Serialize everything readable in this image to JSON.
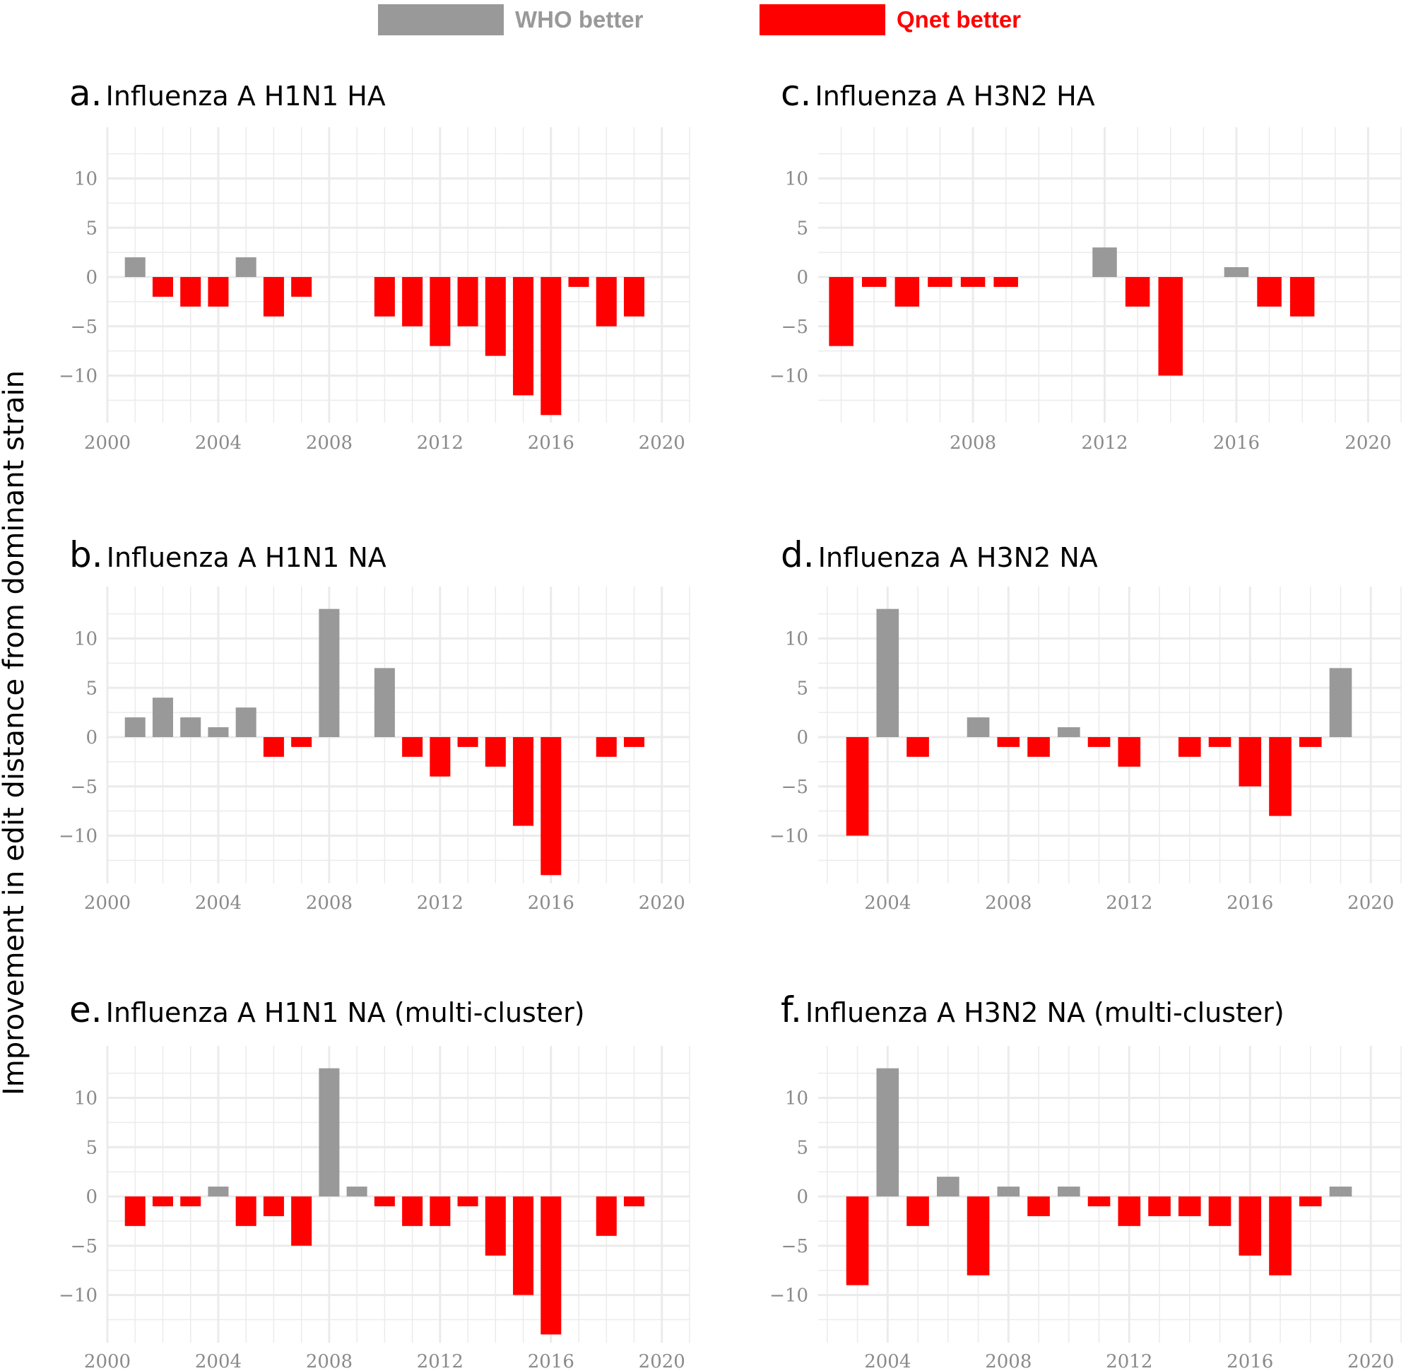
{
  "legend": {
    "items": [
      {
        "label": "WHO better",
        "color": "#999999"
      },
      {
        "label": "Qnet better",
        "color": "#ff0000"
      }
    ]
  },
  "ylabel": "Improvement in edit distance from dominant strain",
  "colors": {
    "who_better": "#999999",
    "qnet_better": "#ff0000",
    "grid": "#ebebeb"
  },
  "chart_data": [
    {
      "type": "bar",
      "letter": "a.",
      "title": "Influenza A H1N1 HA",
      "xlabel": "",
      "ylabel": "",
      "xlim": [
        2000,
        2021
      ],
      "ylim": [
        -15,
        15
      ],
      "xticks": [
        2000,
        2004,
        2008,
        2012,
        2016,
        2020
      ],
      "xtick_labels": [
        "2000",
        "2004",
        "2008",
        "2012",
        "2016",
        "2020"
      ],
      "yticks": [
        10,
        5,
        0,
        -5,
        -10
      ],
      "ytick_labels": [
        "10",
        "5",
        "0",
        "−5",
        "−10"
      ],
      "x": [
        2001,
        2002,
        2003,
        2004,
        2005,
        2006,
        2007,
        2010,
        2011,
        2012,
        2013,
        2014,
        2015,
        2016,
        2017,
        2018,
        2019
      ],
      "values": [
        2,
        -2,
        -3,
        -3,
        2,
        -4,
        -2,
        -4,
        -5,
        -7,
        -5,
        -8,
        -12,
        -14,
        -1,
        -5,
        -4
      ]
    },
    {
      "type": "bar",
      "letter": "b.",
      "title": "Influenza A H1N1 NA",
      "xlabel": "",
      "ylabel": "",
      "xlim": [
        2000,
        2021
      ],
      "ylim": [
        -15,
        15
      ],
      "xticks": [
        2000,
        2004,
        2008,
        2012,
        2016,
        2020
      ],
      "xtick_labels": [
        "2000",
        "2004",
        "2008",
        "2012",
        "2016",
        "2020"
      ],
      "yticks": [
        10,
        5,
        0,
        -5,
        -10
      ],
      "ytick_labels": [
        "10",
        "5",
        "0",
        "−5",
        "−10"
      ],
      "x": [
        2001,
        2002,
        2003,
        2004,
        2005,
        2006,
        2007,
        2008,
        2010,
        2011,
        2012,
        2013,
        2014,
        2015,
        2016,
        2018,
        2019
      ],
      "values": [
        2,
        4,
        2,
        1,
        3,
        -2,
        -1,
        13,
        7,
        -2,
        -4,
        -1,
        -3,
        -9,
        -14,
        -2,
        -1
      ]
    },
    {
      "type": "bar",
      "letter": "c.",
      "title": "Influenza A H3N2 HA",
      "xlabel": "",
      "ylabel": "",
      "xlim": [
        2003.3,
        2021
      ],
      "ylim": [
        -15,
        15
      ],
      "xticks": [
        2008,
        2012,
        2016,
        2020
      ],
      "xtick_labels": [
        "2008",
        "2012",
        "2016",
        "2020"
      ],
      "yticks": [
        10,
        5,
        0,
        -5,
        -10
      ],
      "ytick_labels": [
        "10",
        "5",
        "0",
        "−5",
        "−10"
      ],
      "x": [
        2004,
        2005,
        2006,
        2007,
        2008,
        2009,
        2012,
        2013,
        2014,
        2016,
        2017,
        2018
      ],
      "values": [
        -7,
        -1,
        -3,
        -1,
        -1,
        -1,
        3,
        -3,
        -10,
        1,
        -3,
        -4
      ]
    },
    {
      "type": "bar",
      "letter": "d.",
      "title": "Influenza A H3N2 NA",
      "xlabel": "",
      "ylabel": "",
      "xlim": [
        2001.7,
        2021
      ],
      "ylim": [
        -15,
        15
      ],
      "xticks": [
        2004,
        2008,
        2012,
        2016,
        2020
      ],
      "xtick_labels": [
        "2004",
        "2008",
        "2012",
        "2016",
        "2020"
      ],
      "yticks": [
        10,
        5,
        0,
        -5,
        -10
      ],
      "ytick_labels": [
        "10",
        "5",
        "0",
        "−5",
        "−10"
      ],
      "x": [
        2003,
        2004,
        2005,
        2007,
        2008,
        2009,
        2010,
        2011,
        2012,
        2014,
        2015,
        2016,
        2017,
        2018,
        2019
      ],
      "values": [
        -10,
        13,
        -2,
        2,
        -1,
        -2,
        1,
        -1,
        -3,
        -2,
        -1,
        -5,
        -8,
        -1,
        7
      ]
    },
    {
      "type": "bar",
      "letter": "e.",
      "title": "Influenza A H1N1 NA (multi-cluster)",
      "xlabel": "",
      "ylabel": "",
      "xlim": [
        2000,
        2021
      ],
      "ylim": [
        -15,
        15
      ],
      "xticks": [
        2000,
        2004,
        2008,
        2012,
        2016,
        2020
      ],
      "xtick_labels": [
        "2000",
        "2004",
        "2008",
        "2012",
        "2016",
        "2020"
      ],
      "yticks": [
        10,
        5,
        0,
        -5,
        -10
      ],
      "ytick_labels": [
        "10",
        "5",
        "0",
        "−5",
        "−10"
      ],
      "x": [
        2001,
        2002,
        2003,
        2004,
        2005,
        2006,
        2007,
        2008,
        2009,
        2010,
        2011,
        2012,
        2013,
        2014,
        2015,
        2016,
        2018,
        2019
      ],
      "values": [
        -3,
        -1,
        -1,
        1,
        -3,
        -2,
        -5,
        13,
        1,
        -1,
        -3,
        -3,
        -1,
        -6,
        -10,
        -14,
        -4,
        -1
      ]
    },
    {
      "type": "bar",
      "letter": "f.",
      "title": "Influenza A H3N2 NA (multi-cluster)",
      "xlabel": "",
      "ylabel": "",
      "xlim": [
        2001.7,
        2021
      ],
      "ylim": [
        -15,
        15
      ],
      "xticks": [
        2004,
        2008,
        2012,
        2016,
        2020
      ],
      "xtick_labels": [
        "2004",
        "2008",
        "2012",
        "2016",
        "2020"
      ],
      "yticks": [
        10,
        5,
        0,
        -5,
        -10
      ],
      "ytick_labels": [
        "10",
        "5",
        "0",
        "−5",
        "−10"
      ],
      "x": [
        2003,
        2004,
        2005,
        2006,
        2007,
        2008,
        2009,
        2010,
        2011,
        2012,
        2013,
        2014,
        2015,
        2016,
        2017,
        2018,
        2019
      ],
      "values": [
        -9,
        13,
        -3,
        2,
        -8,
        1,
        -2,
        1,
        -1,
        -3,
        -2,
        -2,
        -3,
        -6,
        -8,
        -1,
        1
      ]
    }
  ]
}
